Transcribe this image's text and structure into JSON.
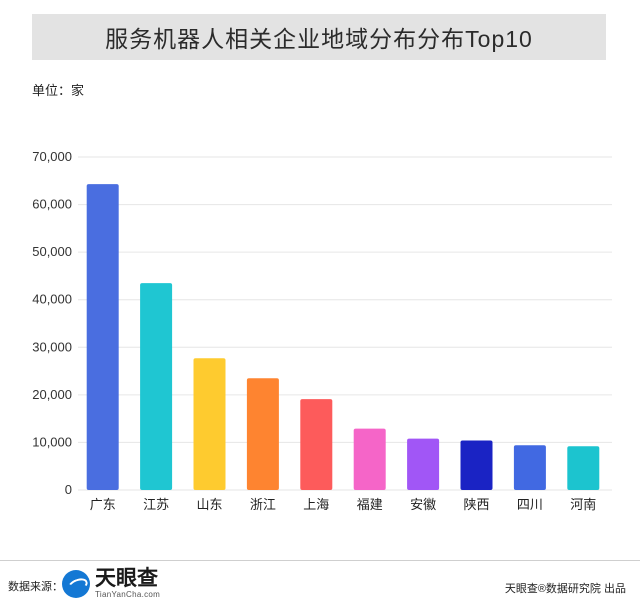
{
  "header": {
    "title": "服务机器人相关企业地域分布分布Top10"
  },
  "unit_label": "单位：家",
  "chart_data": {
    "type": "bar",
    "title": "服务机器人相关企业地域分布分布Top10",
    "ylabel": "单位：家",
    "xlabel": "",
    "categories": [
      "广东",
      "江苏",
      "山东",
      "浙江",
      "上海",
      "福建",
      "安徽",
      "陕西",
      "四川",
      "河南"
    ],
    "values": [
      64300,
      43500,
      27700,
      23500,
      19100,
      12900,
      10800,
      10400,
      9400,
      9200
    ],
    "colors": [
      "#4a6ee0",
      "#1fc6d2",
      "#fecb2f",
      "#fe8430",
      "#fd5b5b",
      "#f565c8",
      "#a156f6",
      "#1a23c4",
      "#4169e2",
      "#1cc4cf"
    ],
    "ylim": [
      0,
      70000
    ],
    "yticks": [
      "0",
      "10,000",
      "20,000",
      "30,000",
      "40,000",
      "50,000",
      "60,000",
      "70,000"
    ],
    "grid": true
  },
  "footer": {
    "source_label": "数据来源：",
    "logo_name": "天眼查",
    "logo_sub": "TianYanCha.com",
    "publisher": "天眼查®数据研究院 出品"
  }
}
